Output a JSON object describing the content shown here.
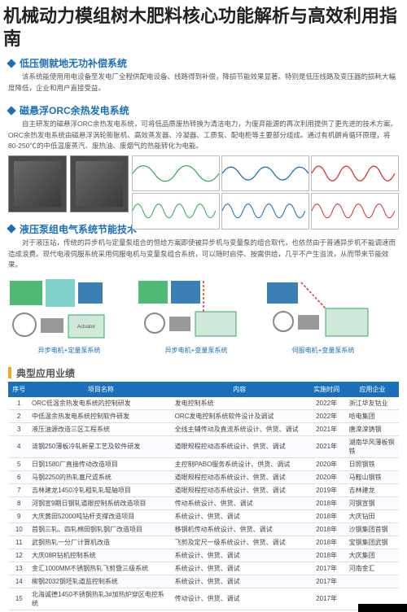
{
  "page_title": "机械动力模组树木肥料核心功能解析与高效利用指南",
  "sections": {
    "sec1": {
      "title": "低压侧就地无功补偿系统",
      "body": "该系统能使用用电设备至发电厂全程供配电设备、线路得到补偿，降损节能效果显著。特别是低压线路及变压器的损耗大幅度降低，企业和用户直接受益。"
    },
    "sec2": {
      "title": "磁悬浮ORC余热发电系统",
      "body": "自主研发的磁悬浮ORC余热发电系统，可将低品质废热转换为清洁电力，为废弃能源的再次利用提供了更先进的技术方案。ORC余热发电系统由磁悬浮涡轮膨胀机、高效蒸发器、冷凝器、工质泵、配电柜等主要部分组成。通过有机朗肯循环原理，将80-250℃的中低温废蒸汽、废热油、废烟气的热能转化为电能。"
    },
    "sec3": {
      "title": "液压泵组电气系统节能技术",
      "body": "对于液压站，传统的异步机与定量泵组合的恒给方案即使被异步机与变量泵的组合取代，也依然由于普通异步机不能调速而造成浪费。现代电液伺服系统采用伺服电机与变量泵组合系统，可以随时启停、按需供给，几乎不产生溢流，从而带来节能效果。",
      "captions": [
        "异步电机+定量泵系统",
        "异步电机+变量泵系统",
        "伺服电机+变量泵系统"
      ]
    }
  },
  "cases": {
    "title": "典型应用业绩",
    "columns": [
      "序号",
      "项目名称",
      "内容",
      "实施时间",
      "应用企业"
    ],
    "rows": [
      [
        "1",
        "ORC低温余热发电系统的控制研发",
        "发电控制系统",
        "2022年",
        "浙江华友钴业"
      ],
      [
        "2",
        "中低温余热发电系统控制软件研发",
        "ORC发电控制系统软件设计及调试",
        "2022年",
        "哈电集团"
      ],
      [
        "3",
        "液压油源改造三区工程系统",
        "全线主辅传动及直流系统设计、供货、调试",
        "2021年",
        "唐滦滦铸钢"
      ],
      [
        "4",
        "涟钢250薄板冷轧新星工艺及软件研发",
        "道眼规程控动态系统设计、供货、调试",
        "2021年",
        "湖南华风薄板铜铁"
      ],
      [
        "5",
        "日钢1580厂直接传动改造项目",
        "主控制PABO服务系统设计、供货、调试",
        "2020年",
        "日照钢铁"
      ],
      [
        "6",
        "马钢2250的热轧塞尺滤系统",
        "道眼规程控动态系统设计、供货、调试",
        "2020年",
        "马鞍山钢铁"
      ],
      [
        "7",
        "吉林建龙1450冷轧粗轧轧辊轴项目",
        "道眼规程控动态系统设计、供货、调试",
        "2019年",
        "吉林建龙"
      ],
      [
        "8",
        "河钢宣9期日钢轧道眼控制系统改造项目",
        "传动系统设计、供货、调试",
        "2018年",
        "河钢宣钢"
      ],
      [
        "9",
        "大庆黄田52000吨钻杆支撑改造项目",
        "系统设计、供货、调试",
        "2018年",
        "大庆钻田"
      ],
      [
        "10",
        "首钢三轧、四轧棉田钢轧钢厂改造项目",
        "移钢机传动系统设计、供货、调试",
        "2018年",
        "沙钢集团首钢"
      ],
      [
        "11",
        "武钢热轧一分厂计算机改造",
        "飞剪及定尺一级系统设计、供货、调试",
        "2018年",
        "宝钢集团武钢"
      ],
      [
        "12",
        "大庆08R钻机控制系统",
        "系统设计、供货、调试",
        "2018年",
        "大庆集团"
      ],
      [
        "13",
        "金汇1000MM不锈钢热轧飞剪暨三级系统",
        "系统设计、供货、调试",
        "2017年",
        "河南金汇"
      ],
      [
        "14",
        "柳钢2032钢坯轧道监控制系统",
        "系统设计、供货、调试",
        "2017年",
        ""
      ],
      [
        "15",
        "北海诚德1450不锈钢热轧3#加热炉穿区电控系统",
        "传动设计、供货、调试",
        "2017年",
        ""
      ]
    ]
  },
  "colors": {
    "brand": "#1b6fb8",
    "accent": "#f6a623",
    "wave_green": "#2fae5d",
    "wave_blue": "#1b6fb8",
    "wave_red": "#d33",
    "diagram_green": "#2fae5d",
    "diagram_cyan": "#7fd3c9",
    "diagram_blue": "#3a7fb5"
  },
  "charts": {
    "mini": [
      {
        "color": "#2fae5d",
        "type": "sine"
      },
      {
        "color": "#1b6fb8",
        "type": "sine-mid"
      },
      {
        "color": "#d33",
        "type": "sine-fast"
      },
      {
        "color": "#2fae5d",
        "type": "sine-dense"
      },
      {
        "color": "#1b6fb8",
        "type": "sine-dense"
      },
      {
        "color": "#d33",
        "type": "sine-dense"
      }
    ]
  }
}
